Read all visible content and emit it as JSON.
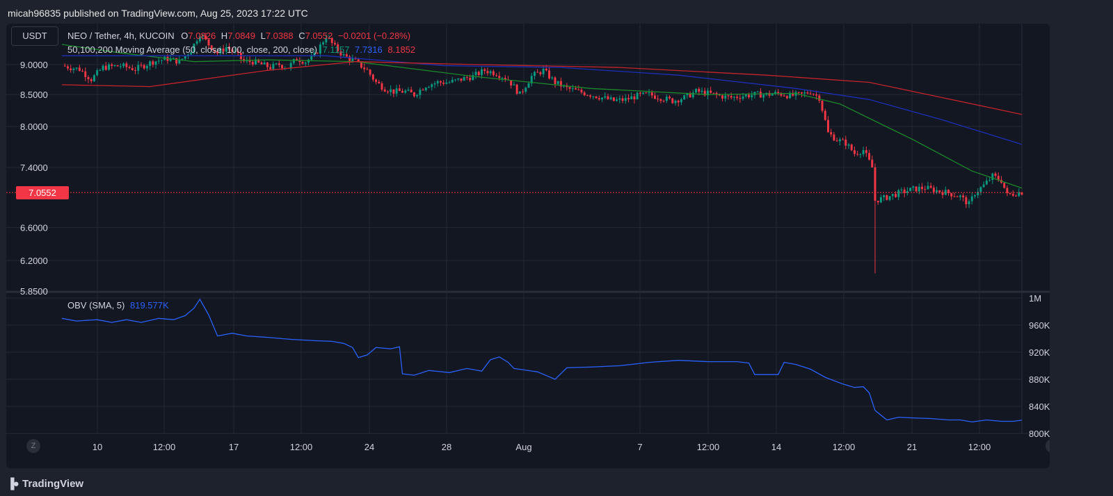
{
  "header": {
    "published": "micah96835 published on TradingView.com, Aug 25, 2023 17:22 UTC"
  },
  "symbol_button": "USDT",
  "legend": {
    "symbol": "NEO / Tether, 4h, KUCOIN",
    "o_label": "O",
    "o_value": "7.0826",
    "h_label": "H",
    "h_value": "7.0849",
    "l_label": "L",
    "l_value": "7.0388",
    "c_label": "C",
    "c_value": "7.0552",
    "change": "−0.0201 (−0.28%)",
    "ma_label": "50,100,200 Moving Average (50, close, 100, close, 200, close)",
    "ma50": "7.1157",
    "ma100": "7.7316",
    "ma200": "8.1852",
    "obv_label": "OBV (SMA, 5)",
    "obv_value": "819.577K"
  },
  "colors": {
    "up": "#089981",
    "down": "#f23645",
    "ma50": "#1b8a2a",
    "ma100": "#1b2fb8",
    "ma200": "#c6232b",
    "obv": "#2962ff",
    "grid": "#262a34"
  },
  "footer": {
    "brand": "TradingView",
    "zoom_btn": "Z",
    "auto_btn": "A"
  },
  "chart_data": [
    {
      "type": "candlestick",
      "title": "NEO / Tether, 4h, KUCOIN",
      "y_ticks": [
        "9.0000",
        "8.5000",
        "8.0000",
        "7.4000",
        "6.6000",
        "6.2000",
        "5.8500"
      ],
      "last_price": "7.0552",
      "x_ticks": [
        "10",
        "12:00",
        "17",
        "12:00",
        "24",
        "28",
        "Aug",
        "7",
        "12:00",
        "14",
        "12:00",
        "21",
        "12:00"
      ],
      "x_scale": "index",
      "ylim": [
        5.85,
        9.6
      ],
      "close_path": [
        [
          0,
          8.98
        ],
        [
          6,
          8.92
        ],
        [
          10,
          8.75
        ],
        [
          14,
          8.95
        ],
        [
          20,
          8.98
        ],
        [
          25,
          8.92
        ],
        [
          31,
          9.05
        ],
        [
          36,
          9.1
        ],
        [
          40,
          9.05
        ],
        [
          44,
          9.25
        ],
        [
          47,
          9.55
        ],
        [
          50,
          9.35
        ],
        [
          53,
          9.2
        ],
        [
          56,
          9.3
        ],
        [
          59,
          9.2
        ],
        [
          62,
          9.05
        ],
        [
          65,
          9.05
        ],
        [
          68,
          9.0
        ],
        [
          71,
          8.95
        ],
        [
          74,
          9.0
        ],
        [
          77,
          8.95
        ],
        [
          80,
          9.1
        ],
        [
          83,
          9.05
        ],
        [
          86,
          9.15
        ],
        [
          90,
          9.5
        ],
        [
          93,
          9.3
        ],
        [
          96,
          9.15
        ],
        [
          100,
          9.05
        ],
        [
          104,
          8.9
        ],
        [
          107,
          8.7
        ],
        [
          110,
          8.6
        ],
        [
          113,
          8.55
        ],
        [
          117,
          8.55
        ],
        [
          120,
          8.5
        ],
        [
          124,
          8.65
        ],
        [
          128,
          8.7
        ],
        [
          132,
          8.7
        ],
        [
          136,
          8.75
        ],
        [
          140,
          8.8
        ],
        [
          144,
          8.9
        ],
        [
          148,
          8.85
        ],
        [
          152,
          8.75
        ],
        [
          156,
          8.5
        ],
        [
          160,
          8.8
        ],
        [
          164,
          8.9
        ],
        [
          168,
          8.7
        ],
        [
          172,
          8.6
        ],
        [
          176,
          8.55
        ],
        [
          180,
          8.5
        ],
        [
          184,
          8.45
        ],
        [
          188,
          8.4
        ],
        [
          192,
          8.42
        ],
        [
          196,
          8.48
        ],
        [
          200,
          8.5
        ],
        [
          204,
          8.45
        ],
        [
          208,
          8.4
        ],
        [
          212,
          8.45
        ],
        [
          216,
          8.55
        ],
        [
          220,
          8.52
        ],
        [
          224,
          8.48
        ],
        [
          228,
          8.45
        ],
        [
          232,
          8.48
        ],
        [
          236,
          8.5
        ],
        [
          240,
          8.5
        ],
        [
          244,
          8.52
        ],
        [
          248,
          8.48
        ],
        [
          252,
          8.5
        ],
        [
          255,
          8.55
        ],
        [
          258,
          8.45
        ],
        [
          261,
          7.9
        ],
        [
          264,
          7.8
        ],
        [
          267,
          7.75
        ],
        [
          270,
          7.6
        ],
        [
          273,
          7.65
        ],
        [
          276,
          7.4
        ],
        [
          277,
          6.95
        ],
        [
          280,
          6.98
        ],
        [
          283,
          7.02
        ],
        [
          286,
          7.06
        ],
        [
          290,
          7.1
        ],
        [
          294,
          7.12
        ],
        [
          298,
          7.08
        ],
        [
          302,
          7.05
        ],
        [
          306,
          7.0
        ],
        [
          309,
          6.9
        ],
        [
          311,
          7.05
        ],
        [
          314,
          7.15
        ],
        [
          317,
          7.28
        ],
        [
          320,
          7.22
        ],
        [
          322,
          7.02
        ],
        [
          325,
          7.05
        ],
        [
          327,
          7.06
        ]
      ],
      "events": {
        "crash_low_index": 277,
        "crash_low": 6.05,
        "dip_low_index": 309,
        "dip_low": 6.85
      },
      "series": [
        {
          "name": "MA 50",
          "path": [
            [
              0,
              9.35
            ],
            [
              20,
              9.2
            ],
            [
              45,
              9.05
            ],
            [
              70,
              9.08
            ],
            [
              100,
              9.05
            ],
            [
              140,
              8.8
            ],
            [
              180,
              8.6
            ],
            [
              220,
              8.5
            ],
            [
              250,
              8.52
            ],
            [
              265,
              8.35
            ],
            [
              290,
              7.8
            ],
            [
              310,
              7.35
            ],
            [
              327,
              7.1157
            ]
          ]
        },
        {
          "name": "MA 100",
          "path": [
            [
              0,
              9.15
            ],
            [
              40,
              9.15
            ],
            [
              90,
              9.15
            ],
            [
              130,
              8.98
            ],
            [
              170,
              8.95
            ],
            [
              210,
              8.82
            ],
            [
              250,
              8.6
            ],
            [
              275,
              8.42
            ],
            [
              300,
              8.1
            ],
            [
              327,
              7.7316
            ]
          ]
        },
        {
          "name": "MA 200",
          "path": [
            [
              0,
              8.66
            ],
            [
              30,
              8.63
            ],
            [
              70,
              8.9
            ],
            [
              100,
              9.05
            ],
            [
              140,
              9.0
            ],
            [
              190,
              8.95
            ],
            [
              240,
              8.82
            ],
            [
              275,
              8.7
            ],
            [
              300,
              8.45
            ],
            [
              327,
              8.1852
            ]
          ]
        }
      ]
    },
    {
      "type": "line",
      "title": "OBV (SMA, 5)",
      "y_ticks": [
        "1M",
        "960K",
        "920K",
        "880K",
        "840K",
        "800K"
      ],
      "ylim": [
        800,
        1000
      ],
      "series": [
        {
          "name": "OBV (SMA, 5)",
          "path": [
            [
              0,
              970
            ],
            [
              5,
              966
            ],
            [
              12,
              968
            ],
            [
              17,
              964
            ],
            [
              22,
              968
            ],
            [
              27,
              964
            ],
            [
              33,
              970
            ],
            [
              38,
              968
            ],
            [
              42,
              974
            ],
            [
              45,
              985
            ],
            [
              47,
              998
            ],
            [
              50,
              975
            ],
            [
              53,
              944
            ],
            [
              58,
              948
            ],
            [
              63,
              944
            ],
            [
              70,
              942
            ],
            [
              78,
              939
            ],
            [
              86,
              937
            ],
            [
              92,
              936
            ],
            [
              96,
              933
            ],
            [
              99,
              927
            ],
            [
              101,
              912
            ],
            [
              104,
              916
            ],
            [
              107,
              927
            ],
            [
              112,
              925
            ],
            [
              115,
              928
            ],
            [
              116,
              888
            ],
            [
              120,
              886
            ],
            [
              125,
              893
            ],
            [
              132,
              890
            ],
            [
              138,
              896
            ],
            [
              143,
              892
            ],
            [
              146,
              909
            ],
            [
              149,
              913
            ],
            [
              152,
              905
            ],
            [
              154,
              896
            ],
            [
              162,
              891
            ],
            [
              168,
              880
            ],
            [
              172,
              897
            ],
            [
              180,
              898
            ],
            [
              190,
              900
            ],
            [
              200,
              905
            ],
            [
              210,
              908
            ],
            [
              220,
              906
            ],
            [
              230,
              906
            ],
            [
              234,
              904
            ],
            [
              236,
              887
            ],
            [
              244,
              887
            ],
            [
              246,
              905
            ],
            [
              250,
              902
            ],
            [
              255,
              895
            ],
            [
              260,
              883
            ],
            [
              266,
              873
            ],
            [
              270,
              868
            ],
            [
              273,
              869
            ],
            [
              275,
              860
            ],
            [
              277,
              834
            ],
            [
              281,
              820
            ],
            [
              285,
              824
            ],
            [
              290,
              823
            ],
            [
              296,
              822
            ],
            [
              302,
              820
            ],
            [
              306,
              820
            ],
            [
              310,
              817
            ],
            [
              315,
              820
            ],
            [
              320,
              818
            ],
            [
              324,
              818
            ],
            [
              327,
              819.577
            ]
          ]
        }
      ]
    }
  ]
}
